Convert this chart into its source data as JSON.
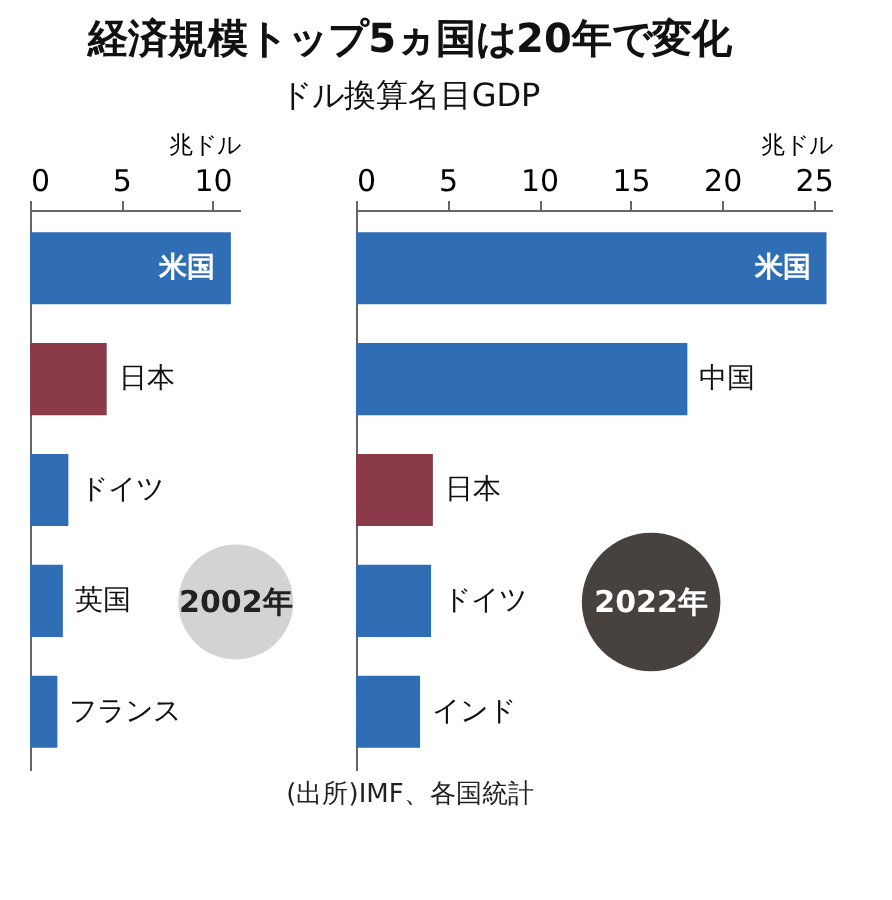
{
  "chart_data": [
    {
      "type": "other",
      "title": "経済規模トップ5ヵ国は20年で変化",
      "subtitle": "ドル換算名目GDP"
    },
    {
      "type": "bar",
      "orientation": "horizontal",
      "xlabel": "兆ドル",
      "categories": [
        "米国",
        "日本",
        "ドイツ",
        "英国",
        "フランス"
      ],
      "values": [
        11.0,
        4.2,
        2.1,
        1.8,
        1.5
      ],
      "colors": [
        "#2f6db5",
        "#8b3a4a",
        "#2f6db5",
        "#2f6db5",
        "#2f6db5"
      ],
      "xlim": [
        0,
        11.5
      ],
      "xticks": [
        0,
        5,
        10
      ],
      "annotations": [
        "2002年"
      ]
    },
    {
      "type": "bar",
      "orientation": "horizontal",
      "xlabel": "兆ドル",
      "categories": [
        "米国",
        "中国",
        "日本",
        "ドイツ",
        "インド"
      ],
      "values": [
        25.7,
        18.1,
        4.2,
        4.1,
        3.5
      ],
      "colors": [
        "#2f6db5",
        "#2f6db5",
        "#8b3a4a",
        "#2f6db5",
        "#2f6db5"
      ],
      "xlim": [
        0,
        26
      ],
      "xticks": [
        0,
        5,
        10,
        15,
        20,
        25
      ],
      "annotations": [
        "2022年",
        "(出所)IMF、各国統計"
      ]
    }
  ]
}
